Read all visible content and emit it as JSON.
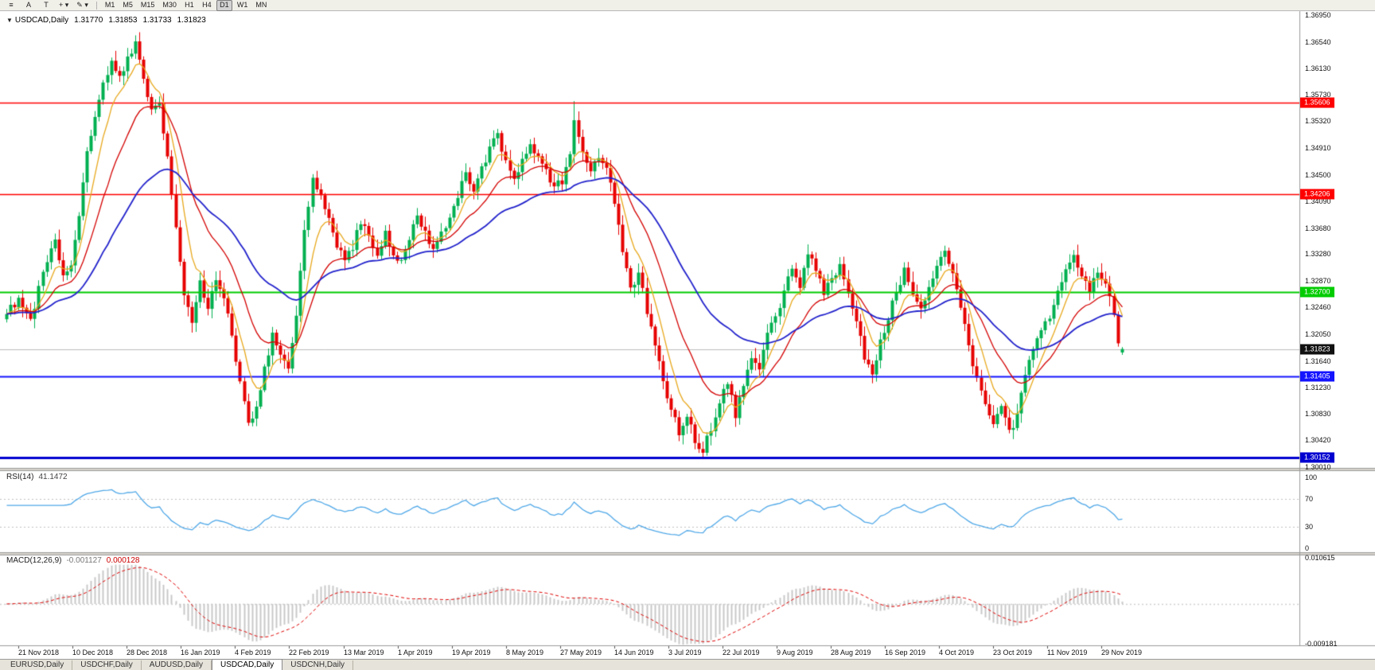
{
  "toolbar": {
    "tool_buttons": [
      {
        "name": "charts-menu-icon",
        "glyph": "≡"
      },
      {
        "name": "cursor-tool-button",
        "glyph": "A"
      },
      {
        "name": "text-tool-button",
        "glyph": "T"
      },
      {
        "name": "crosshair-tool-button",
        "glyph": "+",
        "caret": "▾"
      },
      {
        "name": "drawing-tool-button",
        "glyph": "✎",
        "caret": "▾"
      }
    ],
    "timeframes": [
      "M1",
      "M5",
      "M15",
      "M30",
      "H1",
      "H4",
      "D1",
      "W1",
      "MN"
    ],
    "active_timeframe": "D1"
  },
  "chart": {
    "collapse_glyph": "▼",
    "symbol_label": "USDCAD,Daily",
    "open": "1.31770",
    "high": "1.31853",
    "low": "1.31733",
    "close": "1.31823",
    "axis_max": 1.3695,
    "axis_min": 1.3001,
    "price_axis_labels": [
      "1.36950",
      "1.36540",
      "1.36130",
      "1.35730",
      "1.35320",
      "1.34910",
      "1.34500",
      "1.34090",
      "1.33680",
      "1.33280",
      "1.32870",
      "1.32460",
      "1.32050",
      "1.31640",
      "1.31230",
      "1.30830",
      "1.30420",
      "1.30010"
    ],
    "hlines": [
      {
        "name": "resistance-upper",
        "price": 1.35606,
        "label": "1.35606",
        "color": "#FF0000",
        "width": 1.3
      },
      {
        "name": "resistance-lower",
        "price": 1.34206,
        "label": "1.34206",
        "color": "#FF0000",
        "width": 1.3
      },
      {
        "name": "pivot-green",
        "price": 1.327,
        "label": "1.32700",
        "color": "#00CC00",
        "width": 2.2
      },
      {
        "name": "support-upper",
        "price": 1.31405,
        "label": "1.31405",
        "color": "#1414FF",
        "width": 2
      },
      {
        "name": "support-lower",
        "price": 1.30152,
        "label": "1.30152",
        "color": "#0000D0",
        "width": 3
      }
    ],
    "current_price": {
      "value": 1.31823,
      "label": "1.31823",
      "bg": "#111111",
      "line_color": "#BBBBBB"
    }
  },
  "rsi_panel": {
    "title": "RSI(14)",
    "value": "41.1472",
    "current": 41.1472,
    "axis_labels": [
      "100",
      "70",
      "30",
      "0"
    ],
    "level_lines": [
      70,
      30
    ],
    "line_color": "#4FA8E8"
  },
  "macd_panel": {
    "title": "MACD(12,26,9)",
    "main_value": "-0.001127",
    "signal_value": "0.000128",
    "axis_top": "0.010615",
    "axis_bottom": "-0.009181",
    "axis_top_value": 0.010615,
    "axis_bottom_value": -0.009181,
    "histogram_color": "#C9C9C9",
    "signal_color": "#E00000"
  },
  "date_axis": [
    "21 Nov 2018",
    "10 Dec 2018",
    "28 Dec 2018",
    "16 Jan 2019",
    "4 Feb 2019",
    "22 Feb 2019",
    "13 Mar 2019",
    "1 Apr 2019",
    "19 Apr 2019",
    "8 May 2019",
    "27 May 2019",
    "14 Jun 2019",
    "3 Jul 2019",
    "22 Jul 2019",
    "9 Aug 2019",
    "28 Aug 2019",
    "16 Sep 2019",
    "4 Oct 2019",
    "23 Oct 2019",
    "11 Nov 2019",
    "29 Nov 2019"
  ],
  "tabs": {
    "items": [
      "EURUSD,Daily",
      "USDCHF,Daily",
      "AUDUSD,Daily",
      "USDCAD,Daily",
      "USDCNH,Daily"
    ],
    "active_index": 3
  },
  "chart_data": {
    "type": "candlestick",
    "symbol": "USDCAD",
    "timeframe": "Daily",
    "candle_count": 278,
    "up_color": "#00B050",
    "down_color": "#E60000",
    "price_range": {
      "max": 1.3695,
      "min": 1.3001
    },
    "last_candle": {
      "open": 1.3177,
      "high": 1.31853,
      "low": 1.31733,
      "close": 1.31823
    },
    "specials": [
      {
        "index": 32,
        "high": 1.3664
      },
      {
        "index": 141,
        "high": 1.3563
      },
      {
        "index": 173,
        "low": 1.3016
      }
    ],
    "moving_averages": [
      {
        "name": "fast-ma",
        "period": 7,
        "color": "#E8A81C",
        "width": 1.3
      },
      {
        "name": "medium-ma",
        "period": 18,
        "color": "#D40000",
        "width": 1.3
      },
      {
        "name": "slow-ma",
        "period": 45,
        "color": "#2222CC",
        "width": 1.8
      }
    ],
    "indicators": [
      {
        "name": "RSI",
        "period": 14,
        "current": 41.1472
      },
      {
        "name": "MACD",
        "fast": 12,
        "slow": 26,
        "signal": 9,
        "current_main": -0.001127,
        "current_signal": 0.000128
      }
    ],
    "close_anchors": [
      [
        0,
        1.324
      ],
      [
        3,
        1.3258
      ],
      [
        6,
        1.3225
      ],
      [
        9,
        1.3302
      ],
      [
        12,
        1.3345
      ],
      [
        14,
        1.329
      ],
      [
        16,
        1.3312
      ],
      [
        18,
        1.3388
      ],
      [
        20,
        1.348
      ],
      [
        22,
        1.3542
      ],
      [
        24,
        1.3585
      ],
      [
        26,
        1.3618
      ],
      [
        28,
        1.3598
      ],
      [
        30,
        1.3632
      ],
      [
        32,
        1.365
      ],
      [
        34,
        1.3598
      ],
      [
        36,
        1.3545
      ],
      [
        38,
        1.356
      ],
      [
        40,
        1.3478
      ],
      [
        42,
        1.3375
      ],
      [
        44,
        1.3268
      ],
      [
        46,
        1.3222
      ],
      [
        48,
        1.3282
      ],
      [
        50,
        1.3248
      ],
      [
        52,
        1.3292
      ],
      [
        54,
        1.3262
      ],
      [
        56,
        1.3198
      ],
      [
        58,
        1.3128
      ],
      [
        60,
        1.3068
      ],
      [
        62,
        1.3092
      ],
      [
        64,
        1.315
      ],
      [
        66,
        1.3208
      ],
      [
        68,
        1.3178
      ],
      [
        70,
        1.3158
      ],
      [
        72,
        1.3232
      ],
      [
        74,
        1.3362
      ],
      [
        76,
        1.3448
      ],
      [
        78,
        1.3418
      ],
      [
        80,
        1.3378
      ],
      [
        82,
        1.3342
      ],
      [
        84,
        1.3312
      ],
      [
        86,
        1.334
      ],
      [
        88,
        1.3378
      ],
      [
        90,
        1.3352
      ],
      [
        92,
        1.333
      ],
      [
        94,
        1.3358
      ],
      [
        96,
        1.333
      ],
      [
        98,
        1.3312
      ],
      [
        100,
        1.3348
      ],
      [
        102,
        1.3388
      ],
      [
        104,
        1.3358
      ],
      [
        106,
        1.333
      ],
      [
        108,
        1.336
      ],
      [
        110,
        1.3382
      ],
      [
        112,
        1.342
      ],
      [
        114,
        1.3448
      ],
      [
        116,
        1.343
      ],
      [
        118,
        1.3458
      ],
      [
        120,
        1.3488
      ],
      [
        122,
        1.3512
      ],
      [
        124,
        1.3472
      ],
      [
        126,
        1.3442
      ],
      [
        128,
        1.347
      ],
      [
        130,
        1.3498
      ],
      [
        132,
        1.3478
      ],
      [
        134,
        1.3452
      ],
      [
        136,
        1.3432
      ],
      [
        138,
        1.3442
      ],
      [
        140,
        1.3482
      ],
      [
        141,
        1.3528
      ],
      [
        143,
        1.3478
      ],
      [
        145,
        1.345
      ],
      [
        147,
        1.3482
      ],
      [
        149,
        1.3458
      ],
      [
        151,
        1.3412
      ],
      [
        153,
        1.3332
      ],
      [
        155,
        1.3272
      ],
      [
        157,
        1.3302
      ],
      [
        159,
        1.3242
      ],
      [
        161,
        1.3182
      ],
      [
        163,
        1.3132
      ],
      [
        165,
        1.3092
      ],
      [
        167,
        1.3052
      ],
      [
        169,
        1.3082
      ],
      [
        171,
        1.3042
      ],
      [
        173,
        1.3025
      ],
      [
        175,
        1.3062
      ],
      [
        177,
        1.3102
      ],
      [
        179,
        1.3132
      ],
      [
        181,
        1.3082
      ],
      [
        183,
        1.3122
      ],
      [
        185,
        1.3172
      ],
      [
        187,
        1.3152
      ],
      [
        189,
        1.3202
      ],
      [
        191,
        1.3232
      ],
      [
        193,
        1.3272
      ],
      [
        195,
        1.3312
      ],
      [
        197,
        1.3282
      ],
      [
        199,
        1.3332
      ],
      [
        201,
        1.3302
      ],
      [
        203,
        1.3272
      ],
      [
        205,
        1.3292
      ],
      [
        207,
        1.3312
      ],
      [
        209,
        1.3272
      ],
      [
        211,
        1.3222
      ],
      [
        213,
        1.3172
      ],
      [
        215,
        1.3142
      ],
      [
        217,
        1.3192
      ],
      [
        219,
        1.3232
      ],
      [
        221,
        1.3272
      ],
      [
        223,
        1.3302
      ],
      [
        225,
        1.3272
      ],
      [
        227,
        1.3242
      ],
      [
        229,
        1.3282
      ],
      [
        231,
        1.3312
      ],
      [
        233,
        1.3332
      ],
      [
        235,
        1.3292
      ],
      [
        237,
        1.3242
      ],
      [
        239,
        1.3192
      ],
      [
        241,
        1.3132
      ],
      [
        243,
        1.3092
      ],
      [
        245,
        1.3072
      ],
      [
        247,
        1.3092
      ],
      [
        249,
        1.3052
      ],
      [
        251,
        1.3082
      ],
      [
        253,
        1.3142
      ],
      [
        255,
        1.3182
      ],
      [
        257,
        1.3212
      ],
      [
        259,
        1.3232
      ],
      [
        261,
        1.3272
      ],
      [
        263,
        1.3302
      ],
      [
        265,
        1.3322
      ],
      [
        267,
        1.3292
      ],
      [
        269,
        1.3272
      ],
      [
        271,
        1.3302
      ],
      [
        273,
        1.3282
      ],
      [
        275,
        1.3232
      ],
      [
        276,
        1.3198
      ],
      [
        277,
        1.3182
      ]
    ]
  }
}
